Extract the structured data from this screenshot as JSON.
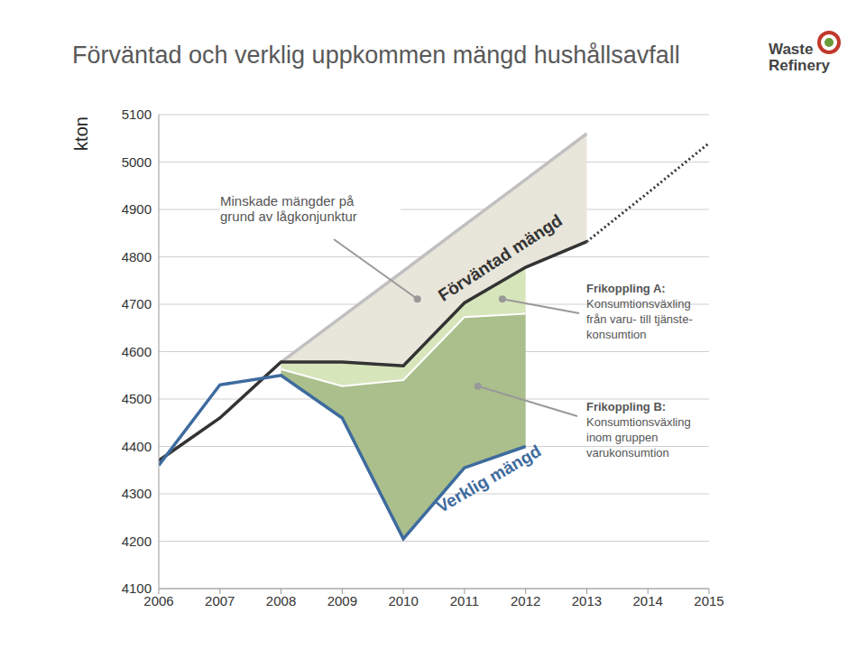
{
  "chart_data": {
    "type": "line",
    "title": "Förväntad och verklig uppkommen mängd hushållsavfall",
    "logo": [
      "Waste",
      "Refinery"
    ],
    "ylabel": "kton",
    "x": [
      2006,
      2007,
      2008,
      2009,
      2010,
      2011,
      2012,
      2013,
      2014,
      2015
    ],
    "xlim": [
      2006,
      2015
    ],
    "xticks": [
      2006,
      2007,
      2008,
      2009,
      2010,
      2011,
      2012,
      2013,
      2014,
      2015
    ],
    "ylim": [
      4100,
      5100
    ],
    "yticks": [
      4100,
      4200,
      4300,
      4400,
      4500,
      4600,
      4700,
      4800,
      4900,
      5000,
      5100
    ],
    "grid": true,
    "series": [
      {
        "name": "Verklig mängd",
        "color": "#3e6b9e",
        "line_style": "solid",
        "values": [
          4360,
          4530,
          4550,
          4460,
          4205,
          4355,
          4400,
          null,
          null,
          null
        ]
      },
      {
        "name": "Förväntad mängd",
        "color": "#333333",
        "line_style": "solid",
        "values": [
          4370,
          4460,
          4578,
          4578,
          4570,
          4703,
          4778,
          4832,
          null,
          null
        ]
      },
      {
        "color": "#c0c0c0",
        "line_style": "solid",
        "values": [
          null,
          null,
          4578,
          4674,
          4770,
          4867,
          4963,
          5060,
          null,
          null
        ]
      },
      {
        "color": "#ffffff",
        "line_style": "solid",
        "values": [
          null,
          null,
          4563,
          4527,
          4540,
          4673,
          4680,
          null,
          null,
          null
        ]
      },
      {
        "color": "#333333",
        "line_style": "dotted",
        "values": [
          null,
          null,
          null,
          null,
          null,
          null,
          null,
          4832,
          4935,
          5040
        ]
      }
    ],
    "annotations": [
      {
        "lines": [
          "Minskade mängder på",
          "grund av lågkonjunktur"
        ],
        "x": 2010.23,
        "y": 4711,
        "color": "#e8e5da",
        "between": [
          2,
          1
        ]
      },
      {
        "title": "Frikoppling A:",
        "lines": [
          "Konsumtionsväxling",
          "från varu- till tjänste-",
          "konsumtion"
        ],
        "x": 2011.62,
        "y": 4711,
        "color": "#d7e5bb",
        "between": [
          1,
          3
        ]
      },
      {
        "title": "Frikoppling B:",
        "lines": [
          "Konsumtionsväxling",
          "inom gruppen",
          "varukonsumtion"
        ],
        "x": 2011.22,
        "y": 4527,
        "color": "#aabf8b",
        "between": [
          3,
          0
        ]
      }
    ]
  }
}
